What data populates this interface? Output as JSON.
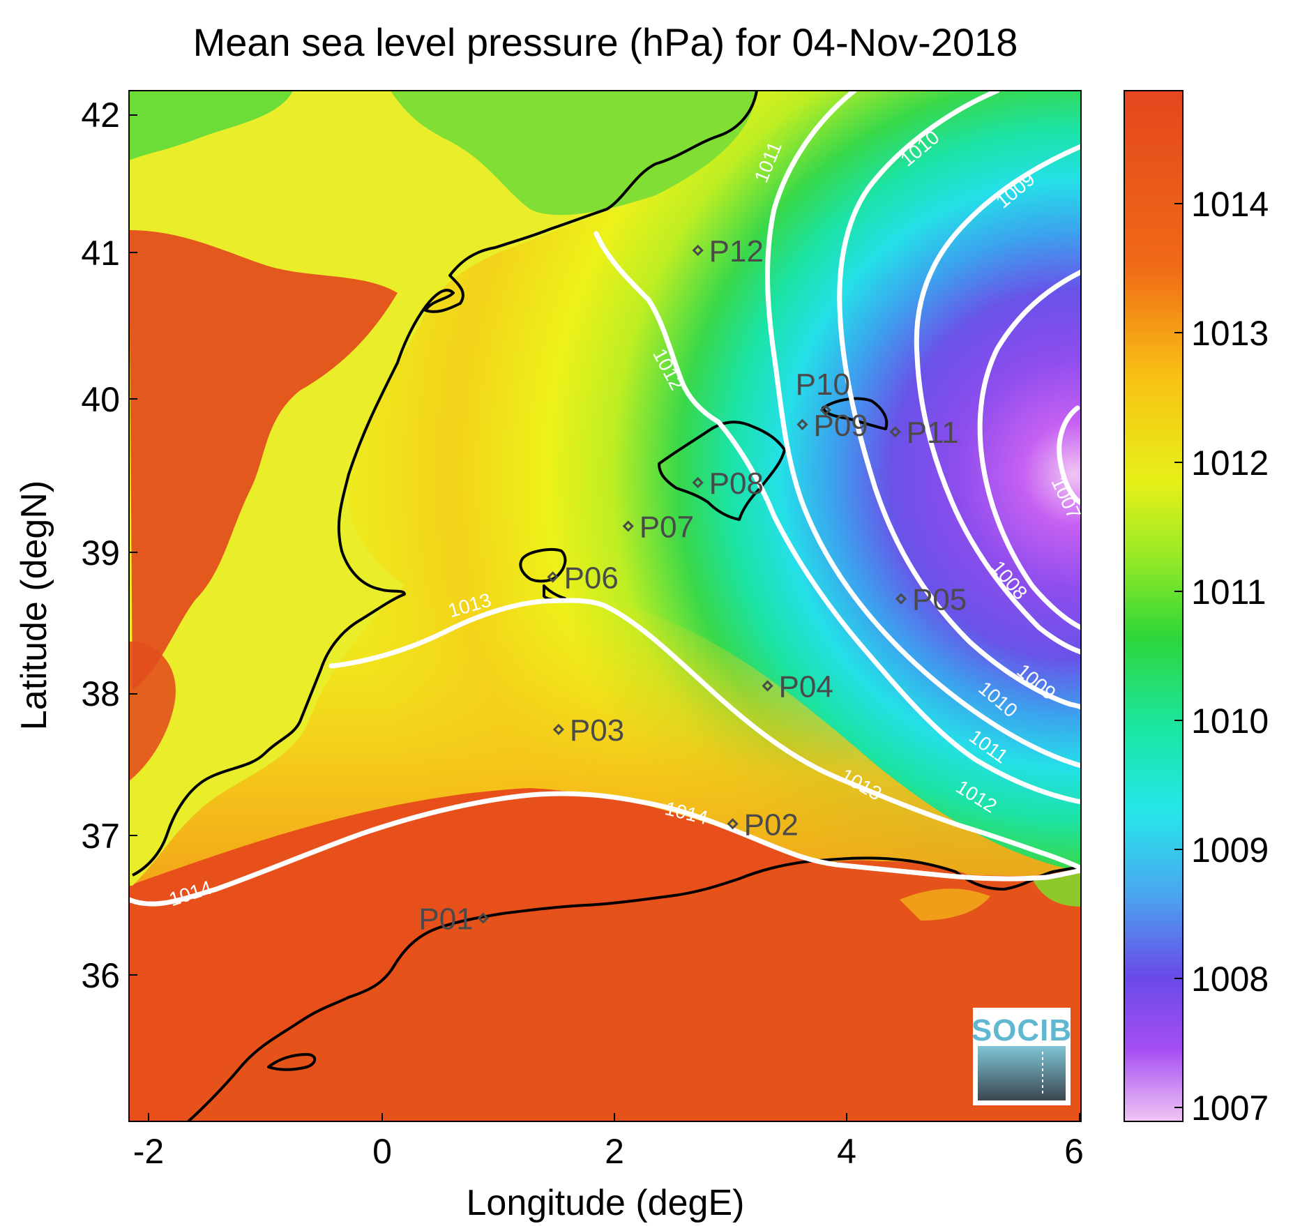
{
  "title": "Mean sea level pressure (hPa) for 04-Nov-2018",
  "xlabel": "Longitude (degE)",
  "ylabel": "Latitude (degN)",
  "xticks": [
    "-2",
    "0",
    "2",
    "4",
    "6"
  ],
  "yticks": [
    "42",
    "41",
    "40",
    "39",
    "38",
    "37",
    "36"
  ],
  "colorbar": {
    "ticks": [
      "1014",
      "1013",
      "1012",
      "1011",
      "1010",
      "1009",
      "1008",
      "1007"
    ],
    "range": [
      1006.9,
      1014.8
    ]
  },
  "logo": "SOCIB",
  "map": {
    "lon_range": [
      -2.2,
      6.0
    ],
    "lat_range": [
      35.1,
      42.2
    ],
    "variable": "Mean sea level pressure (hPa)",
    "date": "04-Nov-2018",
    "contour_labels": [
      "1014",
      "1013",
      "1012",
      "1011",
      "1010",
      "1009",
      "1008",
      "1007"
    ],
    "stations": [
      {
        "name": "P01",
        "lon": 0.85,
        "lat": 36.5
      },
      {
        "name": "P02",
        "lon": 3.0,
        "lat": 37.15
      },
      {
        "name": "P03",
        "lon": 1.5,
        "lat": 37.8
      },
      {
        "name": "P04",
        "lon": 3.3,
        "lat": 38.1
      },
      {
        "name": "P05",
        "lon": 4.45,
        "lat": 38.7
      },
      {
        "name": "P06",
        "lon": 1.45,
        "lat": 38.85
      },
      {
        "name": "P07",
        "lon": 2.1,
        "lat": 39.2
      },
      {
        "name": "P08",
        "lon": 2.7,
        "lat": 39.5
      },
      {
        "name": "P09",
        "lon": 3.6,
        "lat": 39.9
      },
      {
        "name": "P10",
        "lon": 3.8,
        "lat": 40.0
      },
      {
        "name": "P11",
        "lon": 4.4,
        "lat": 39.85
      },
      {
        "name": "P12",
        "lon": 2.7,
        "lat": 41.1
      }
    ]
  }
}
